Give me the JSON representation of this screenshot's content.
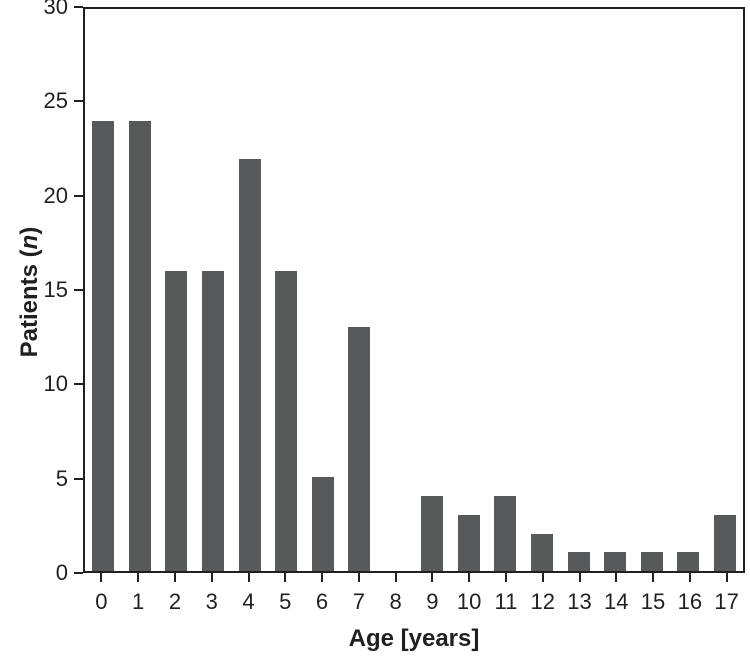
{
  "chart_data": {
    "type": "bar",
    "title": "",
    "xlabel": "Age [years]",
    "ylabel": "Patients (n)",
    "ylabel_parts": {
      "prefix": "Patients (",
      "italic": "n",
      "suffix": ")"
    },
    "categories": [
      "0",
      "1",
      "2",
      "3",
      "4",
      "5",
      "6",
      "7",
      "8",
      "9",
      "10",
      "11",
      "12",
      "13",
      "14",
      "15",
      "16",
      "17"
    ],
    "values": [
      24,
      24,
      16,
      16,
      22,
      16,
      5,
      13,
      0,
      4,
      3,
      4,
      2,
      1,
      1,
      1,
      1,
      3
    ],
    "ylim": [
      0,
      30
    ],
    "yticks": [
      0,
      5,
      10,
      15,
      20,
      25,
      30
    ],
    "grid": false,
    "legend": null,
    "bar_color": "#58595b",
    "axis_color": "#231f20"
  }
}
